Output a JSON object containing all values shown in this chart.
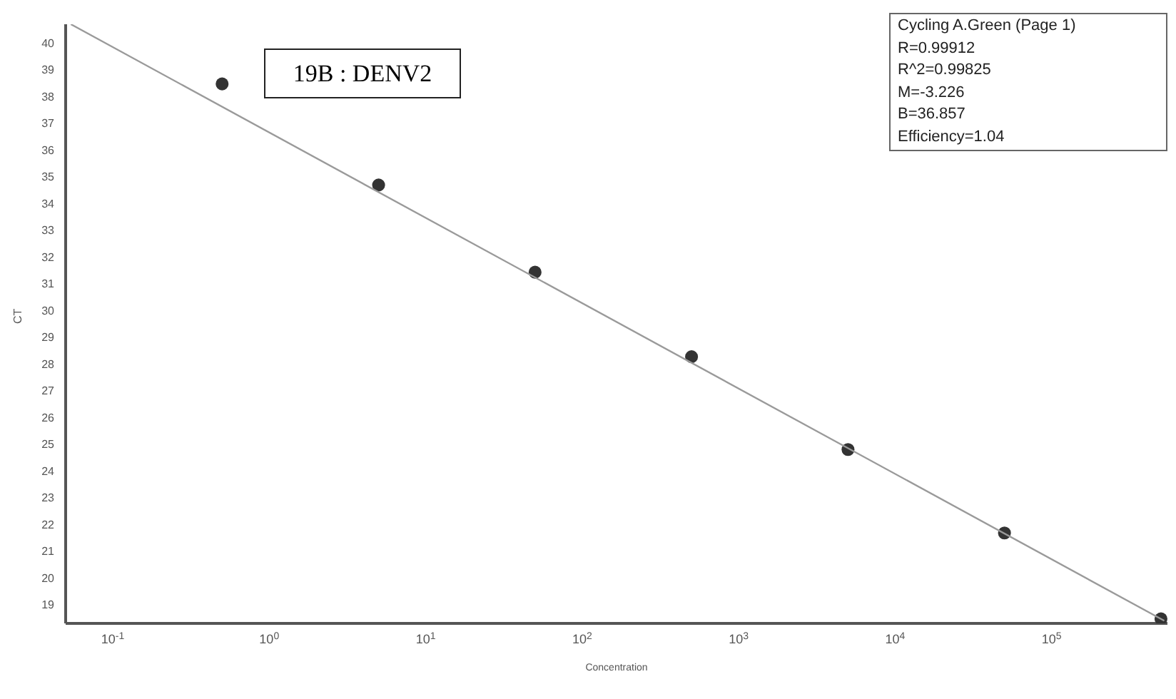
{
  "chart_data": {
    "type": "scatter",
    "xlabel": "Concentration",
    "ylabel": "CT",
    "log": "x",
    "xlim": [
      0.05,
      550000
    ],
    "ylim": [
      18.3,
      40.7
    ],
    "xticks": [
      {
        "value": 0.1,
        "label": "10$^{-1}$"
      },
      {
        "value": 1,
        "label": "10$^{0}$"
      },
      {
        "value": 10,
        "label": "10$^{1}$"
      },
      {
        "value": 100,
        "label": "10$^{2}$"
      },
      {
        "value": 1000,
        "label": "10$^{3}$"
      },
      {
        "value": 10000,
        "label": "10$^{4}$"
      },
      {
        "value": 100000,
        "label": "10$^{5}$"
      }
    ],
    "yticks": [
      19,
      20,
      21,
      22,
      23,
      24,
      25,
      26,
      27,
      28,
      29,
      30,
      31,
      32,
      33,
      34,
      35,
      36,
      37,
      38,
      39,
      40
    ],
    "series": [
      {
        "type": "scatter",
        "color": "#333333",
        "marker": "circle",
        "x": [
          0.5,
          5,
          50,
          500,
          5000,
          50000,
          500000
        ],
        "values": [
          38.47,
          34.69,
          31.43,
          28.27,
          24.8,
          21.68,
          18.47
        ]
      },
      {
        "type": "line",
        "color": "#9a9a9a",
        "marker": "none",
        "x": [
          0.054,
          525000
        ],
        "values": [
          40.7,
          18.4
        ]
      }
    ],
    "annotations": [
      "19B : DENV2",
      "Cycling A.Green (Page 1)\nR=0.99912\nR^2=0.99825\nM=-3.226\nB=36.857\nEfficiency=1.04"
    ]
  }
}
